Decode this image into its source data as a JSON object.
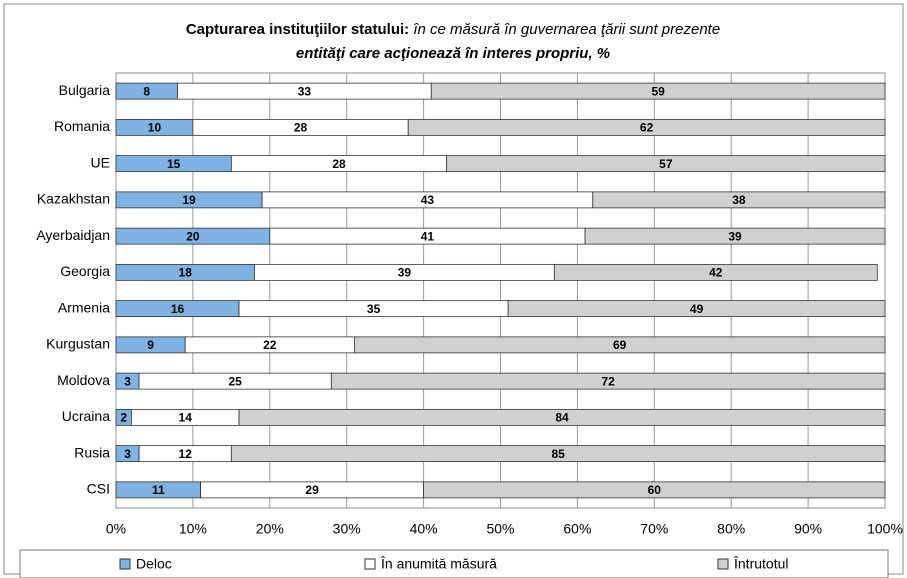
{
  "chart_data": {
    "type": "stacked_barh",
    "title": "Capturarea instituţiilor statului:",
    "subtitle": "în ce măsură în guvernarea ţării sunt prezente entităţi care acţionează în interes propriu, %",
    "categories": [
      "Bulgaria",
      "Romania",
      "UE",
      "Kazakhstan",
      "Ayerbaidjan",
      "Georgia",
      "Armenia",
      "Kurgustan",
      "Moldova",
      "Ucraina",
      "Rusia",
      "CSI"
    ],
    "series": [
      {
        "name": "Deloc",
        "color": "#7fb3e3",
        "values": [
          8,
          10,
          15,
          19,
          20,
          18,
          16,
          9,
          3,
          2,
          3,
          11
        ]
      },
      {
        "name": "În anumită măsură",
        "color": "#ffffff",
        "values": [
          33,
          28,
          28,
          43,
          41,
          39,
          35,
          22,
          25,
          14,
          12,
          29
        ]
      },
      {
        "name": "Întrutotul",
        "color": "#d0d0d0",
        "values": [
          59,
          62,
          57,
          38,
          39,
          42,
          49,
          69,
          72,
          84,
          85,
          60
        ]
      }
    ],
    "xlim": [
      0,
      100
    ],
    "xticks": [
      {
        "value": 0,
        "label": "0%"
      },
      {
        "value": 10,
        "label": "10%"
      },
      {
        "value": 20,
        "label": "20%"
      },
      {
        "value": 30,
        "label": "30%"
      },
      {
        "value": 40,
        "label": "40%"
      },
      {
        "value": 50,
        "label": "50%"
      },
      {
        "value": 60,
        "label": "60%"
      },
      {
        "value": 70,
        "label": "70%"
      },
      {
        "value": 80,
        "label": "80%"
      },
      {
        "value": 90,
        "label": "90%"
      },
      {
        "value": 100,
        "label": "100%"
      }
    ],
    "grid": true,
    "legend": "bottom"
  }
}
